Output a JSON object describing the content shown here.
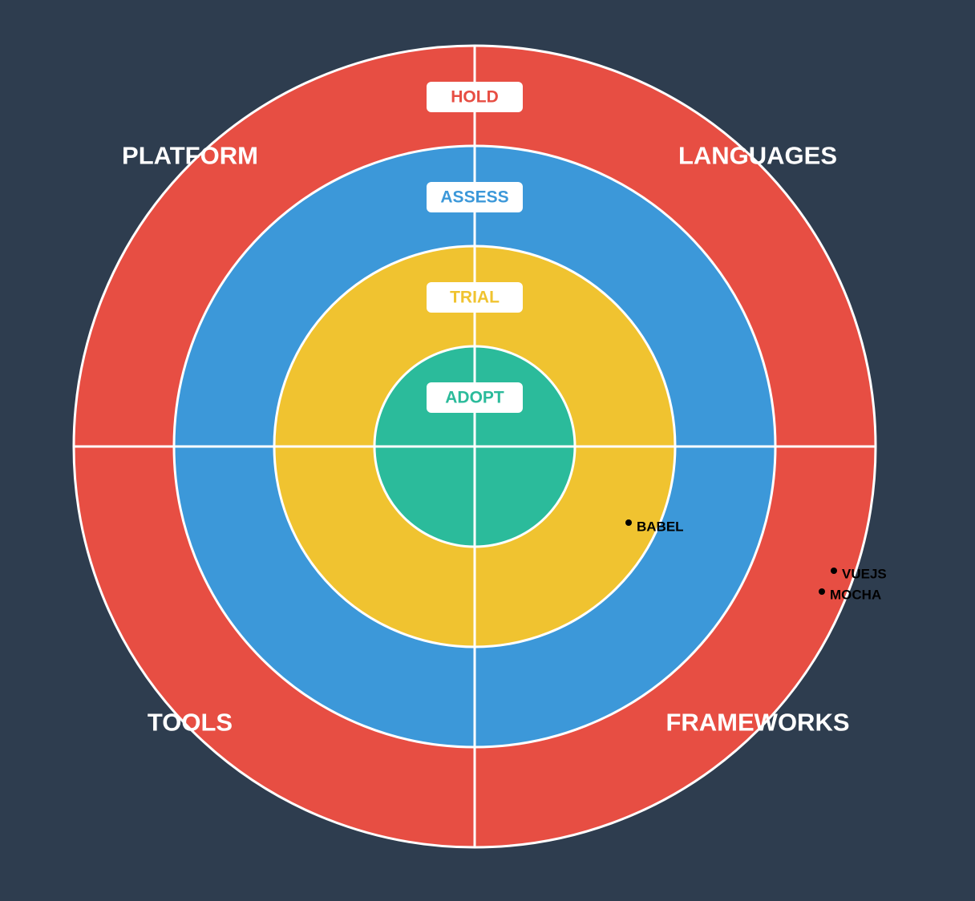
{
  "rings": [
    {
      "id": "adopt",
      "label": "ADOPT",
      "color": "#2bbb9b"
    },
    {
      "id": "trial",
      "label": "TRIAL",
      "color": "#f0c330"
    },
    {
      "id": "assess",
      "label": "ASSESS",
      "color": "#3c98d9"
    },
    {
      "id": "hold",
      "label": "HOLD",
      "color": "#e74e43"
    }
  ],
  "quadrants": [
    {
      "id": "platform",
      "label": "PLATFORM"
    },
    {
      "id": "languages",
      "label": "LANGUAGES"
    },
    {
      "id": "tools",
      "label": "TOOLS"
    },
    {
      "id": "frameworks",
      "label": "FRAMEWORKS"
    }
  ],
  "blips": [
    {
      "id": "babel",
      "label": "BABEL",
      "quadrant": "frameworks",
      "ring": "trial"
    },
    {
      "id": "vuejs",
      "label": "VUEJS",
      "quadrant": "frameworks",
      "ring": "hold"
    },
    {
      "id": "mocha",
      "label": "MOCHA",
      "quadrant": "frameworks",
      "ring": "hold"
    }
  ],
  "colors": {
    "background": "#2e3d4f",
    "divider": "#ffffff",
    "blip": "#000000"
  }
}
